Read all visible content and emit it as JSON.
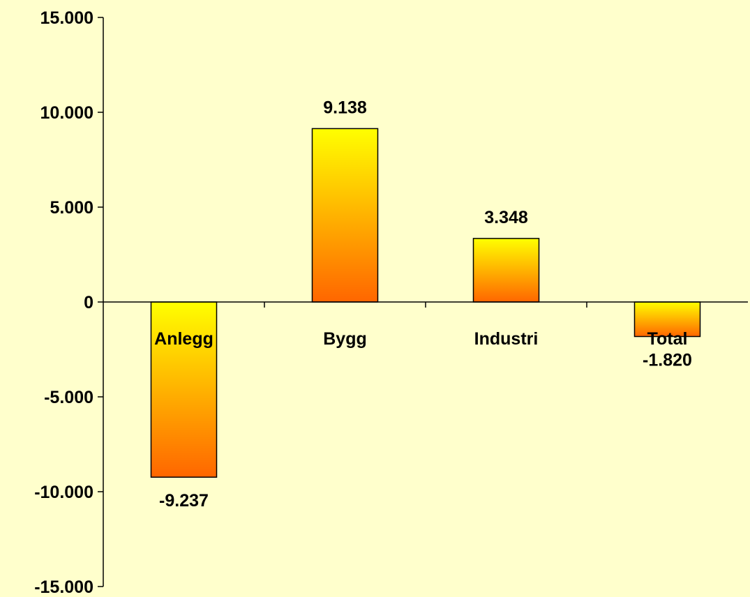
{
  "chart_data": {
    "type": "bar",
    "title": "",
    "xlabel": "",
    "ylabel": "",
    "categories": [
      "Anlegg",
      "Bygg",
      "Industri",
      "Total"
    ],
    "values": [
      -9237,
      9138,
      3348,
      -1820
    ],
    "value_labels": [
      "-9.237",
      "9.138",
      "3.348",
      "-1.820"
    ],
    "ylim": [
      -15000,
      15000
    ],
    "yticks": [
      15000,
      10000,
      5000,
      0,
      -5000,
      -10000,
      -15000
    ],
    "ytick_labels": [
      "15.000",
      "10.000",
      "5.000",
      "0",
      "-5.000",
      "-10.000",
      "-15.000"
    ],
    "grid": false,
    "legend": "none",
    "colors": {
      "background": "#FFFFCC",
      "bar_top": "#FFFF00",
      "bar_bottom": "#FF6600",
      "outline": "#000000"
    }
  }
}
